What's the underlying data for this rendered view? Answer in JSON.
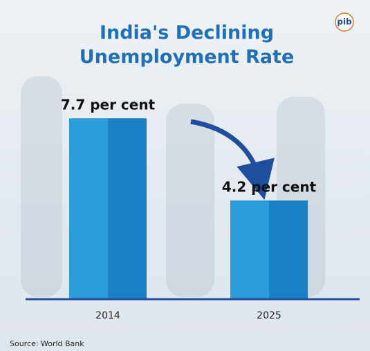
{
  "logo": "pib",
  "chart_data": {
    "type": "bar",
    "title": "India's Declining Unemployment Rate",
    "categories": [
      "2014",
      "2025"
    ],
    "values": [
      7.7,
      4.2
    ],
    "value_labels": [
      "7.7 per cent",
      "4.2 per cent"
    ],
    "color": "#2b9ddb",
    "ylim": [
      0,
      8
    ],
    "source": "Source: World Bank"
  }
}
